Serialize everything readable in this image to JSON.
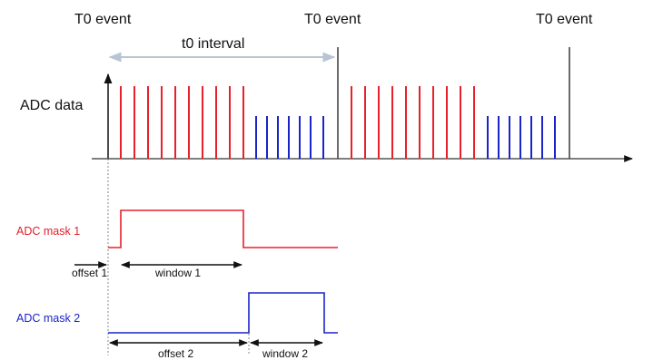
{
  "labels": {
    "t0_event": "T0 event",
    "t0_interval": "t0 interval",
    "adc_data": "ADC data",
    "adc_mask_1": "ADC mask 1",
    "adc_mask_2": "ADC mask 2",
    "offset_1": "offset 1",
    "window_1": "window 1",
    "offset_2": "offset 2",
    "window_2": "window 2"
  },
  "colors": {
    "red": "#e8202a",
    "blue": "#1a24c8",
    "red_text": "#e0202a",
    "blue_text": "#1a24c8",
    "axis": "#444444",
    "dim": "#111111",
    "interval_arrow": "#b8c4d4",
    "dotted": "#888888"
  }
}
